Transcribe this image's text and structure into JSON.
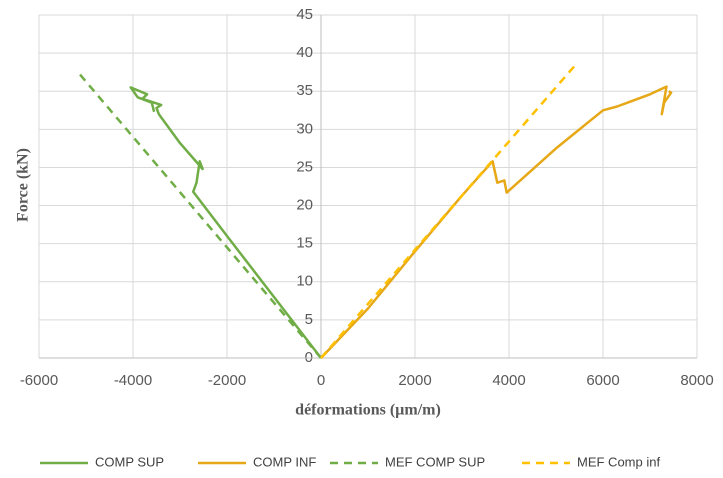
{
  "chart_data": {
    "type": "line",
    "x_label": "déformations (µm/m)",
    "y_label": "Force (kN)",
    "xlim": [
      -6000,
      8000
    ],
    "xticks": [
      -6000,
      -4000,
      -2000,
      0,
      2000,
      4000,
      6000,
      8000
    ],
    "ylim": [
      0,
      45
    ],
    "yticks": [
      0,
      5,
      10,
      15,
      20,
      25,
      30,
      35,
      40,
      45
    ],
    "grid": true,
    "legend": "bottom",
    "series": [
      {
        "name": "COMP SUP",
        "color": "#70ad47",
        "dash": false,
        "x": [
          0,
          -1000,
          -2000,
          -2720,
          -2650,
          -2580,
          -2520,
          -3000,
          -3450,
          -3500,
          -3400,
          -3800,
          -3700,
          -4050,
          -3900,
          -3600,
          -3550
        ],
        "values": [
          0,
          8,
          16,
          21.8,
          23,
          25.8,
          24.8,
          28.2,
          32,
          32.8,
          33.2,
          34,
          34.6,
          35.5,
          34.2,
          33.5,
          32.3
        ]
      },
      {
        "name": "COMP INF",
        "color": "#e6a817",
        "dash": false,
        "x": [
          0,
          1000,
          2000,
          3000,
          3650,
          3750,
          3900,
          3950,
          5000,
          6000,
          6300,
          7000,
          7350,
          7250,
          7300,
          7450,
          7400
        ],
        "values": [
          0,
          6.5,
          14,
          21.3,
          25.8,
          23,
          23.3,
          21.7,
          27.5,
          32.5,
          33,
          34.6,
          35.6,
          32,
          33.5,
          34.8,
          35
        ]
      },
      {
        "name": "MEF COMP SUP",
        "color": "#70ad47",
        "dash": true,
        "x": [
          0,
          -5170
        ],
        "values": [
          0,
          37.5
        ]
      },
      {
        "name": "MEF Comp inf",
        "color": "#ffc000",
        "dash": true,
        "x": [
          0,
          5450
        ],
        "values": [
          0,
          38.7
        ]
      }
    ]
  }
}
